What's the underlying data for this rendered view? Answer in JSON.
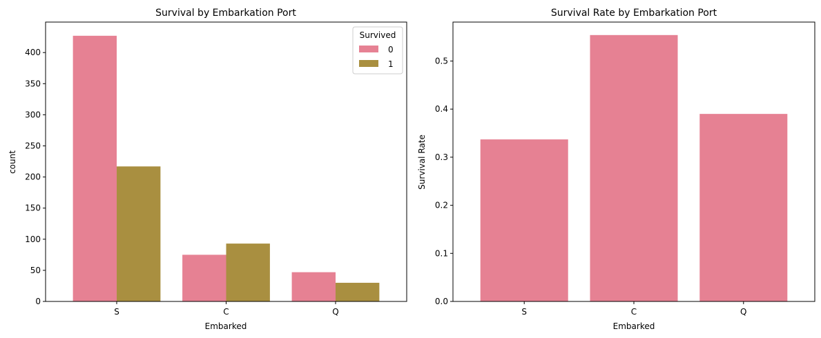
{
  "colors": {
    "series_0": "#e68193",
    "series_1": "#a98f40",
    "axes": "#000000",
    "legend_border": "#cccccc"
  },
  "chart_data": [
    {
      "type": "bar",
      "title": "Survival by Embarkation Port",
      "xlabel": "Embarked",
      "ylabel": "count",
      "categories": [
        "S",
        "C",
        "Q"
      ],
      "series": [
        {
          "name": "0",
          "values": [
            427,
            75,
            47
          ]
        },
        {
          "name": "1",
          "values": [
            217,
            93,
            30
          ]
        }
      ],
      "ylim": [
        0,
        449
      ],
      "yticks": [
        0,
        50,
        100,
        150,
        200,
        250,
        300,
        350,
        400
      ],
      "legend": {
        "title": "Survived",
        "placement": "top-right"
      },
      "grid": false
    },
    {
      "type": "bar",
      "title": "Survival Rate by Embarkation Port",
      "xlabel": "Embarked",
      "ylabel": "Survival Rate",
      "categories": [
        "S",
        "C",
        "Q"
      ],
      "values": [
        0.337,
        0.554,
        0.39
      ],
      "ylim": [
        0,
        0.581
      ],
      "yticks": [
        "0.0",
        "0.1",
        "0.2",
        "0.3",
        "0.4",
        "0.5"
      ],
      "grid": false
    }
  ]
}
